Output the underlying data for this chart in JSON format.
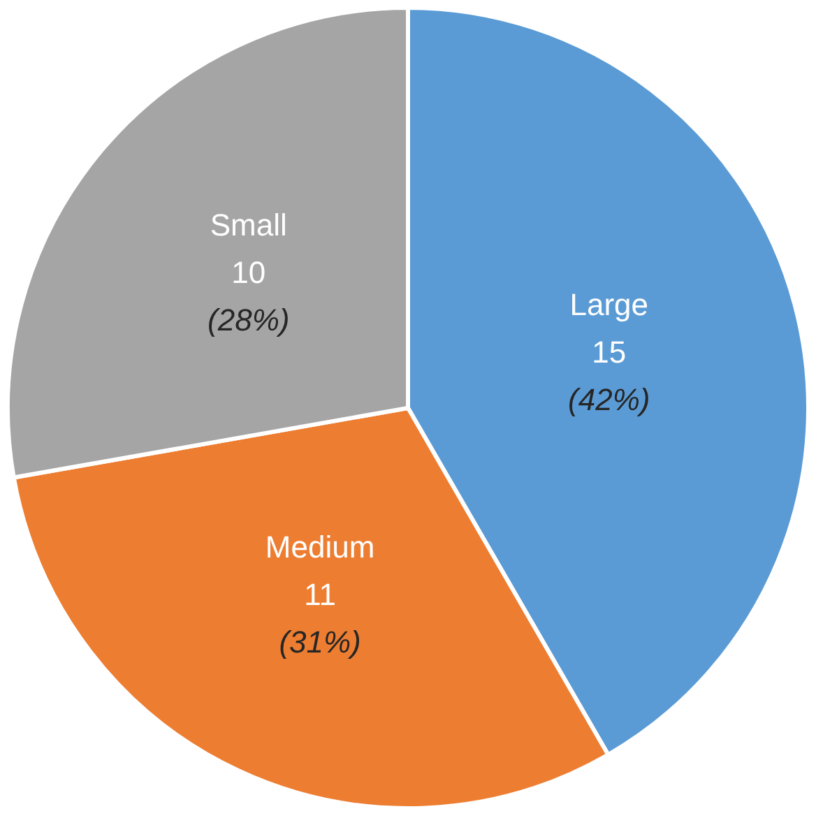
{
  "chart_data": {
    "type": "pie",
    "categories": [
      "Large",
      "Medium",
      "Small"
    ],
    "values": [
      15,
      11,
      10
    ],
    "colors": [
      "#5b9bd5",
      "#ed7d31",
      "#a5a5a5"
    ],
    "value_labels": [
      "15\n(42%)",
      "11\n(31%)",
      "10\n(28%)"
    ],
    "legend": false
  }
}
